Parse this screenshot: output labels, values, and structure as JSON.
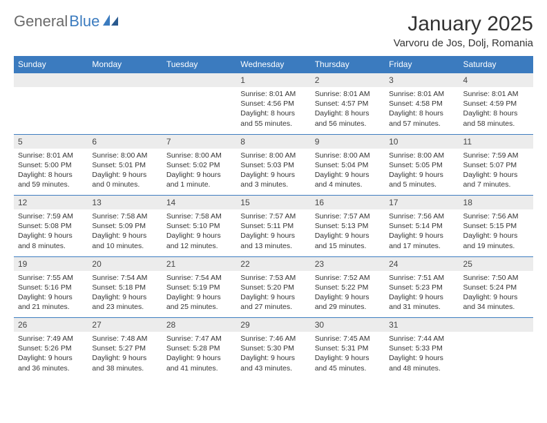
{
  "logo": {
    "text_gray": "General",
    "text_blue": "Blue"
  },
  "title": "January 2025",
  "location": "Varvoru de Jos, Dolj, Romania",
  "colors": {
    "header_bg": "#3b7bbf",
    "header_text": "#ffffff",
    "daynum_bg": "#ececec",
    "border": "#3b7bbf",
    "logo_gray": "#6a6a6a",
    "logo_blue": "#3b7bbf"
  },
  "day_headers": [
    "Sunday",
    "Monday",
    "Tuesday",
    "Wednesday",
    "Thursday",
    "Friday",
    "Saturday"
  ],
  "weeks": [
    [
      null,
      null,
      null,
      {
        "n": "1",
        "sr": "8:01 AM",
        "ss": "4:56 PM",
        "dl": "8 hours and 55 minutes."
      },
      {
        "n": "2",
        "sr": "8:01 AM",
        "ss": "4:57 PM",
        "dl": "8 hours and 56 minutes."
      },
      {
        "n": "3",
        "sr": "8:01 AM",
        "ss": "4:58 PM",
        "dl": "8 hours and 57 minutes."
      },
      {
        "n": "4",
        "sr": "8:01 AM",
        "ss": "4:59 PM",
        "dl": "8 hours and 58 minutes."
      }
    ],
    [
      {
        "n": "5",
        "sr": "8:01 AM",
        "ss": "5:00 PM",
        "dl": "8 hours and 59 minutes."
      },
      {
        "n": "6",
        "sr": "8:00 AM",
        "ss": "5:01 PM",
        "dl": "9 hours and 0 minutes."
      },
      {
        "n": "7",
        "sr": "8:00 AM",
        "ss": "5:02 PM",
        "dl": "9 hours and 1 minute."
      },
      {
        "n": "8",
        "sr": "8:00 AM",
        "ss": "5:03 PM",
        "dl": "9 hours and 3 minutes."
      },
      {
        "n": "9",
        "sr": "8:00 AM",
        "ss": "5:04 PM",
        "dl": "9 hours and 4 minutes."
      },
      {
        "n": "10",
        "sr": "8:00 AM",
        "ss": "5:05 PM",
        "dl": "9 hours and 5 minutes."
      },
      {
        "n": "11",
        "sr": "7:59 AM",
        "ss": "5:07 PM",
        "dl": "9 hours and 7 minutes."
      }
    ],
    [
      {
        "n": "12",
        "sr": "7:59 AM",
        "ss": "5:08 PM",
        "dl": "9 hours and 8 minutes."
      },
      {
        "n": "13",
        "sr": "7:58 AM",
        "ss": "5:09 PM",
        "dl": "9 hours and 10 minutes."
      },
      {
        "n": "14",
        "sr": "7:58 AM",
        "ss": "5:10 PM",
        "dl": "9 hours and 12 minutes."
      },
      {
        "n": "15",
        "sr": "7:57 AM",
        "ss": "5:11 PM",
        "dl": "9 hours and 13 minutes."
      },
      {
        "n": "16",
        "sr": "7:57 AM",
        "ss": "5:13 PM",
        "dl": "9 hours and 15 minutes."
      },
      {
        "n": "17",
        "sr": "7:56 AM",
        "ss": "5:14 PM",
        "dl": "9 hours and 17 minutes."
      },
      {
        "n": "18",
        "sr": "7:56 AM",
        "ss": "5:15 PM",
        "dl": "9 hours and 19 minutes."
      }
    ],
    [
      {
        "n": "19",
        "sr": "7:55 AM",
        "ss": "5:16 PM",
        "dl": "9 hours and 21 minutes."
      },
      {
        "n": "20",
        "sr": "7:54 AM",
        "ss": "5:18 PM",
        "dl": "9 hours and 23 minutes."
      },
      {
        "n": "21",
        "sr": "7:54 AM",
        "ss": "5:19 PM",
        "dl": "9 hours and 25 minutes."
      },
      {
        "n": "22",
        "sr": "7:53 AM",
        "ss": "5:20 PM",
        "dl": "9 hours and 27 minutes."
      },
      {
        "n": "23",
        "sr": "7:52 AM",
        "ss": "5:22 PM",
        "dl": "9 hours and 29 minutes."
      },
      {
        "n": "24",
        "sr": "7:51 AM",
        "ss": "5:23 PM",
        "dl": "9 hours and 31 minutes."
      },
      {
        "n": "25",
        "sr": "7:50 AM",
        "ss": "5:24 PM",
        "dl": "9 hours and 34 minutes."
      }
    ],
    [
      {
        "n": "26",
        "sr": "7:49 AM",
        "ss": "5:26 PM",
        "dl": "9 hours and 36 minutes."
      },
      {
        "n": "27",
        "sr": "7:48 AM",
        "ss": "5:27 PM",
        "dl": "9 hours and 38 minutes."
      },
      {
        "n": "28",
        "sr": "7:47 AM",
        "ss": "5:28 PM",
        "dl": "9 hours and 41 minutes."
      },
      {
        "n": "29",
        "sr": "7:46 AM",
        "ss": "5:30 PM",
        "dl": "9 hours and 43 minutes."
      },
      {
        "n": "30",
        "sr": "7:45 AM",
        "ss": "5:31 PM",
        "dl": "9 hours and 45 minutes."
      },
      {
        "n": "31",
        "sr": "7:44 AM",
        "ss": "5:33 PM",
        "dl": "9 hours and 48 minutes."
      },
      null
    ]
  ],
  "labels": {
    "sunrise": "Sunrise:",
    "sunset": "Sunset:",
    "daylight": "Daylight:"
  }
}
